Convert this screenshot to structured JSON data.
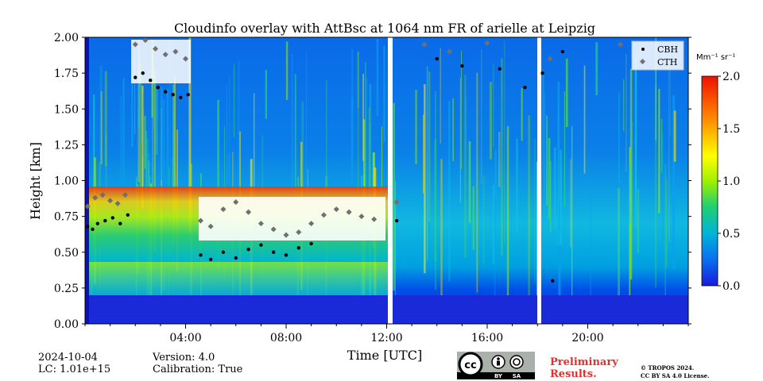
{
  "chart_data": {
    "type": "heatmap",
    "title": "Cloudinfo overlay with AttBsc at 1064 nm FR of arielle at Leipzig",
    "xlabel": "Time [UTC]",
    "ylabel": "Height [km]",
    "xlim": [
      0,
      24
    ],
    "ylim": [
      0,
      2.0
    ],
    "x_ticks": [
      4,
      8,
      12,
      16,
      20
    ],
    "x_tick_labels": [
      "04:00",
      "08:00",
      "12:00",
      "16:00",
      "20:00"
    ],
    "y_ticks": [
      0,
      0.25,
      0.5,
      0.75,
      1.0,
      1.25,
      1.5,
      1.75,
      2.0
    ],
    "y_tick_labels": [
      "0.00",
      "0.25",
      "0.50",
      "0.75",
      "1.00",
      "1.25",
      "1.50",
      "1.75",
      "2.00"
    ],
    "legend": {
      "position": "top-right",
      "entries": [
        {
          "label": "CBH",
          "color": "#000000"
        },
        {
          "label": "CTH",
          "color": "#707070"
        }
      ]
    },
    "colorbar": {
      "unit": "Mm⁻¹ sr⁻¹",
      "range": [
        0,
        2.0
      ],
      "ticks": [
        0,
        0.5,
        1.0,
        1.5,
        2.0
      ],
      "tick_labels": [
        "0.0",
        "0.5",
        "1.0",
        "1.5",
        "2.0"
      ],
      "colors": [
        "#1a1adc",
        "#0a6cf0",
        "#00b4d8",
        "#20d070",
        "#a0f000",
        "#ffff00",
        "#ff8800",
        "#ee1100"
      ]
    },
    "data_gaps_utc": [
      [
        12.05,
        12.25
      ],
      [
        18.1,
        18.25
      ]
    ],
    "cbh_series": [
      {
        "x": 0.1,
        "y": 0.68
      },
      {
        "x": 0.3,
        "y": 0.66
      },
      {
        "x": 0.5,
        "y": 0.7
      },
      {
        "x": 0.8,
        "y": 0.72
      },
      {
        "x": 1.1,
        "y": 0.74
      },
      {
        "x": 1.4,
        "y": 0.7
      },
      {
        "x": 1.7,
        "y": 0.76
      },
      {
        "x": 2.0,
        "y": 1.72
      },
      {
        "x": 2.3,
        "y": 1.75
      },
      {
        "x": 2.6,
        "y": 1.7
      },
      {
        "x": 2.9,
        "y": 1.65
      },
      {
        "x": 3.2,
        "y": 1.62
      },
      {
        "x": 3.5,
        "y": 1.6
      },
      {
        "x": 3.8,
        "y": 1.58
      },
      {
        "x": 4.1,
        "y": 1.6
      },
      {
        "x": 4.6,
        "y": 0.48
      },
      {
        "x": 5.0,
        "y": 0.45
      },
      {
        "x": 5.5,
        "y": 0.5
      },
      {
        "x": 6.0,
        "y": 0.46
      },
      {
        "x": 6.5,
        "y": 0.52
      },
      {
        "x": 7.0,
        "y": 0.55
      },
      {
        "x": 7.5,
        "y": 0.5
      },
      {
        "x": 8.0,
        "y": 0.48
      },
      {
        "x": 8.5,
        "y": 0.53
      },
      {
        "x": 9.0,
        "y": 0.56
      },
      {
        "x": 12.4,
        "y": 0.72
      },
      {
        "x": 14.0,
        "y": 1.85
      },
      {
        "x": 15.0,
        "y": 1.8
      },
      {
        "x": 16.5,
        "y": 1.78
      },
      {
        "x": 17.5,
        "y": 1.65
      },
      {
        "x": 18.2,
        "y": 1.75
      },
      {
        "x": 18.6,
        "y": 0.3
      },
      {
        "x": 19.0,
        "y": 1.9
      }
    ],
    "cth_series": [
      {
        "x": 0.1,
        "y": 0.82
      },
      {
        "x": 0.4,
        "y": 0.88
      },
      {
        "x": 0.7,
        "y": 0.9
      },
      {
        "x": 1.0,
        "y": 0.86
      },
      {
        "x": 1.3,
        "y": 0.84
      },
      {
        "x": 1.6,
        "y": 0.9
      },
      {
        "x": 2.0,
        "y": 1.95
      },
      {
        "x": 2.4,
        "y": 1.98
      },
      {
        "x": 2.8,
        "y": 1.92
      },
      {
        "x": 3.2,
        "y": 1.88
      },
      {
        "x": 3.6,
        "y": 1.9
      },
      {
        "x": 4.0,
        "y": 1.85
      },
      {
        "x": 4.6,
        "y": 0.72
      },
      {
        "x": 5.0,
        "y": 0.68
      },
      {
        "x": 5.5,
        "y": 0.8
      },
      {
        "x": 6.0,
        "y": 0.85
      },
      {
        "x": 6.5,
        "y": 0.78
      },
      {
        "x": 7.0,
        "y": 0.7
      },
      {
        "x": 7.5,
        "y": 0.66
      },
      {
        "x": 8.0,
        "y": 0.62
      },
      {
        "x": 8.5,
        "y": 0.64
      },
      {
        "x": 9.0,
        "y": 0.7
      },
      {
        "x": 9.5,
        "y": 0.76
      },
      {
        "x": 10.0,
        "y": 0.8
      },
      {
        "x": 10.5,
        "y": 0.78
      },
      {
        "x": 11.0,
        "y": 0.75
      },
      {
        "x": 11.5,
        "y": 0.73
      },
      {
        "x": 12.4,
        "y": 0.85
      },
      {
        "x": 13.5,
        "y": 1.95
      },
      {
        "x": 14.5,
        "y": 1.9
      },
      {
        "x": 16.0,
        "y": 1.96
      },
      {
        "x": 18.5,
        "y": 1.85
      },
      {
        "x": 21.3,
        "y": 1.95
      }
    ]
  },
  "footer": {
    "date": "2024-10-04",
    "lc": "LC: 1.01e+15",
    "version": "Version: 4.0",
    "calibration": "Calibration: True",
    "cc_icons": {
      "cc": "cc",
      "by": "BY",
      "sa": "SA"
    },
    "preliminary_line1": "Preliminary",
    "preliminary_line2": "Results.",
    "copyright_line1": "© TROPOS 2024.",
    "copyright_line2": "CC BY SA 4.0 License."
  }
}
